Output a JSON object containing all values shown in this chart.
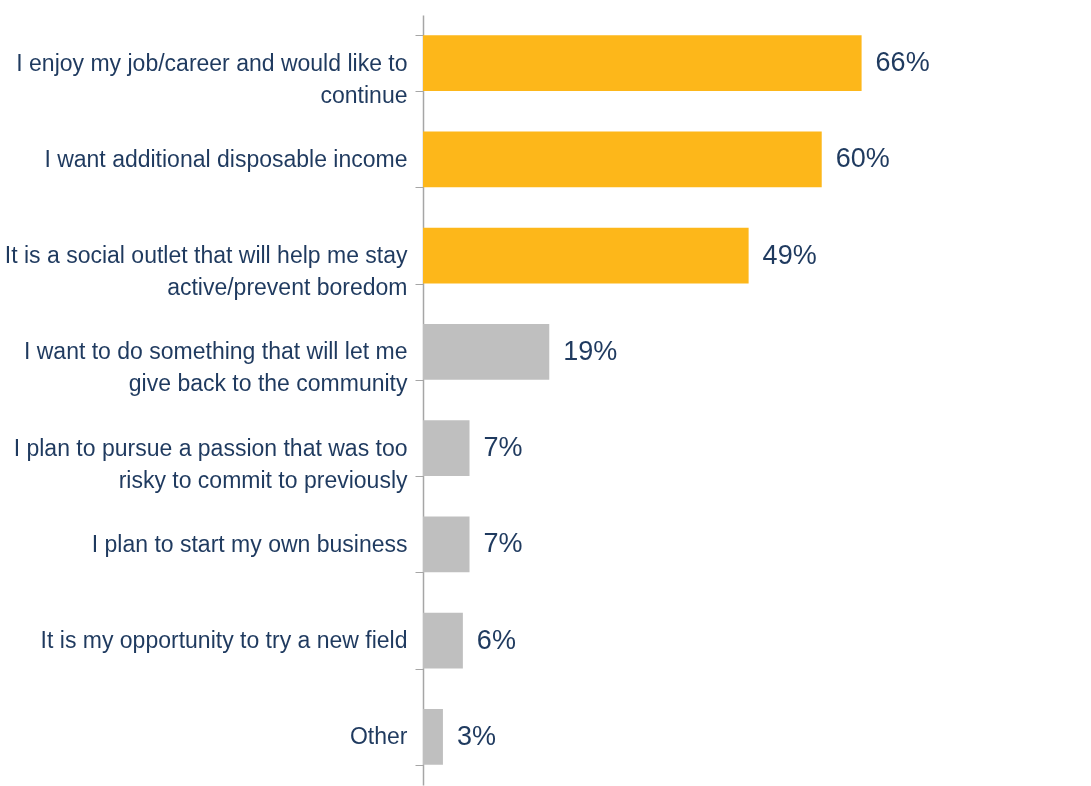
{
  "chart_data": {
    "type": "bar",
    "orientation": "horizontal",
    "categories": [
      "I enjoy my job/career and would like to\ncontinue",
      "I want additional disposable income",
      "It is a social outlet that will help me stay\nactive/prevent boredom",
      "I want to do something that will let me\ngive back to the community",
      "I plan to pursue a passion that was too\nrisky to commit to previously",
      "I plan to start my own business",
      "It is my opportunity to try a new field",
      "Other"
    ],
    "values": [
      66,
      60,
      49,
      19,
      7,
      7,
      6,
      3
    ],
    "value_labels": [
      "66%",
      "60%",
      "49%",
      "19%",
      "7%",
      "7%",
      "6%",
      "3%"
    ],
    "colors": [
      "#fdb71a",
      "#fdb71a",
      "#fdb71a",
      "#bfbfbf",
      "#bfbfbf",
      "#bfbfbf",
      "#bfbfbf",
      "#bfbfbf"
    ],
    "grid": false
  }
}
